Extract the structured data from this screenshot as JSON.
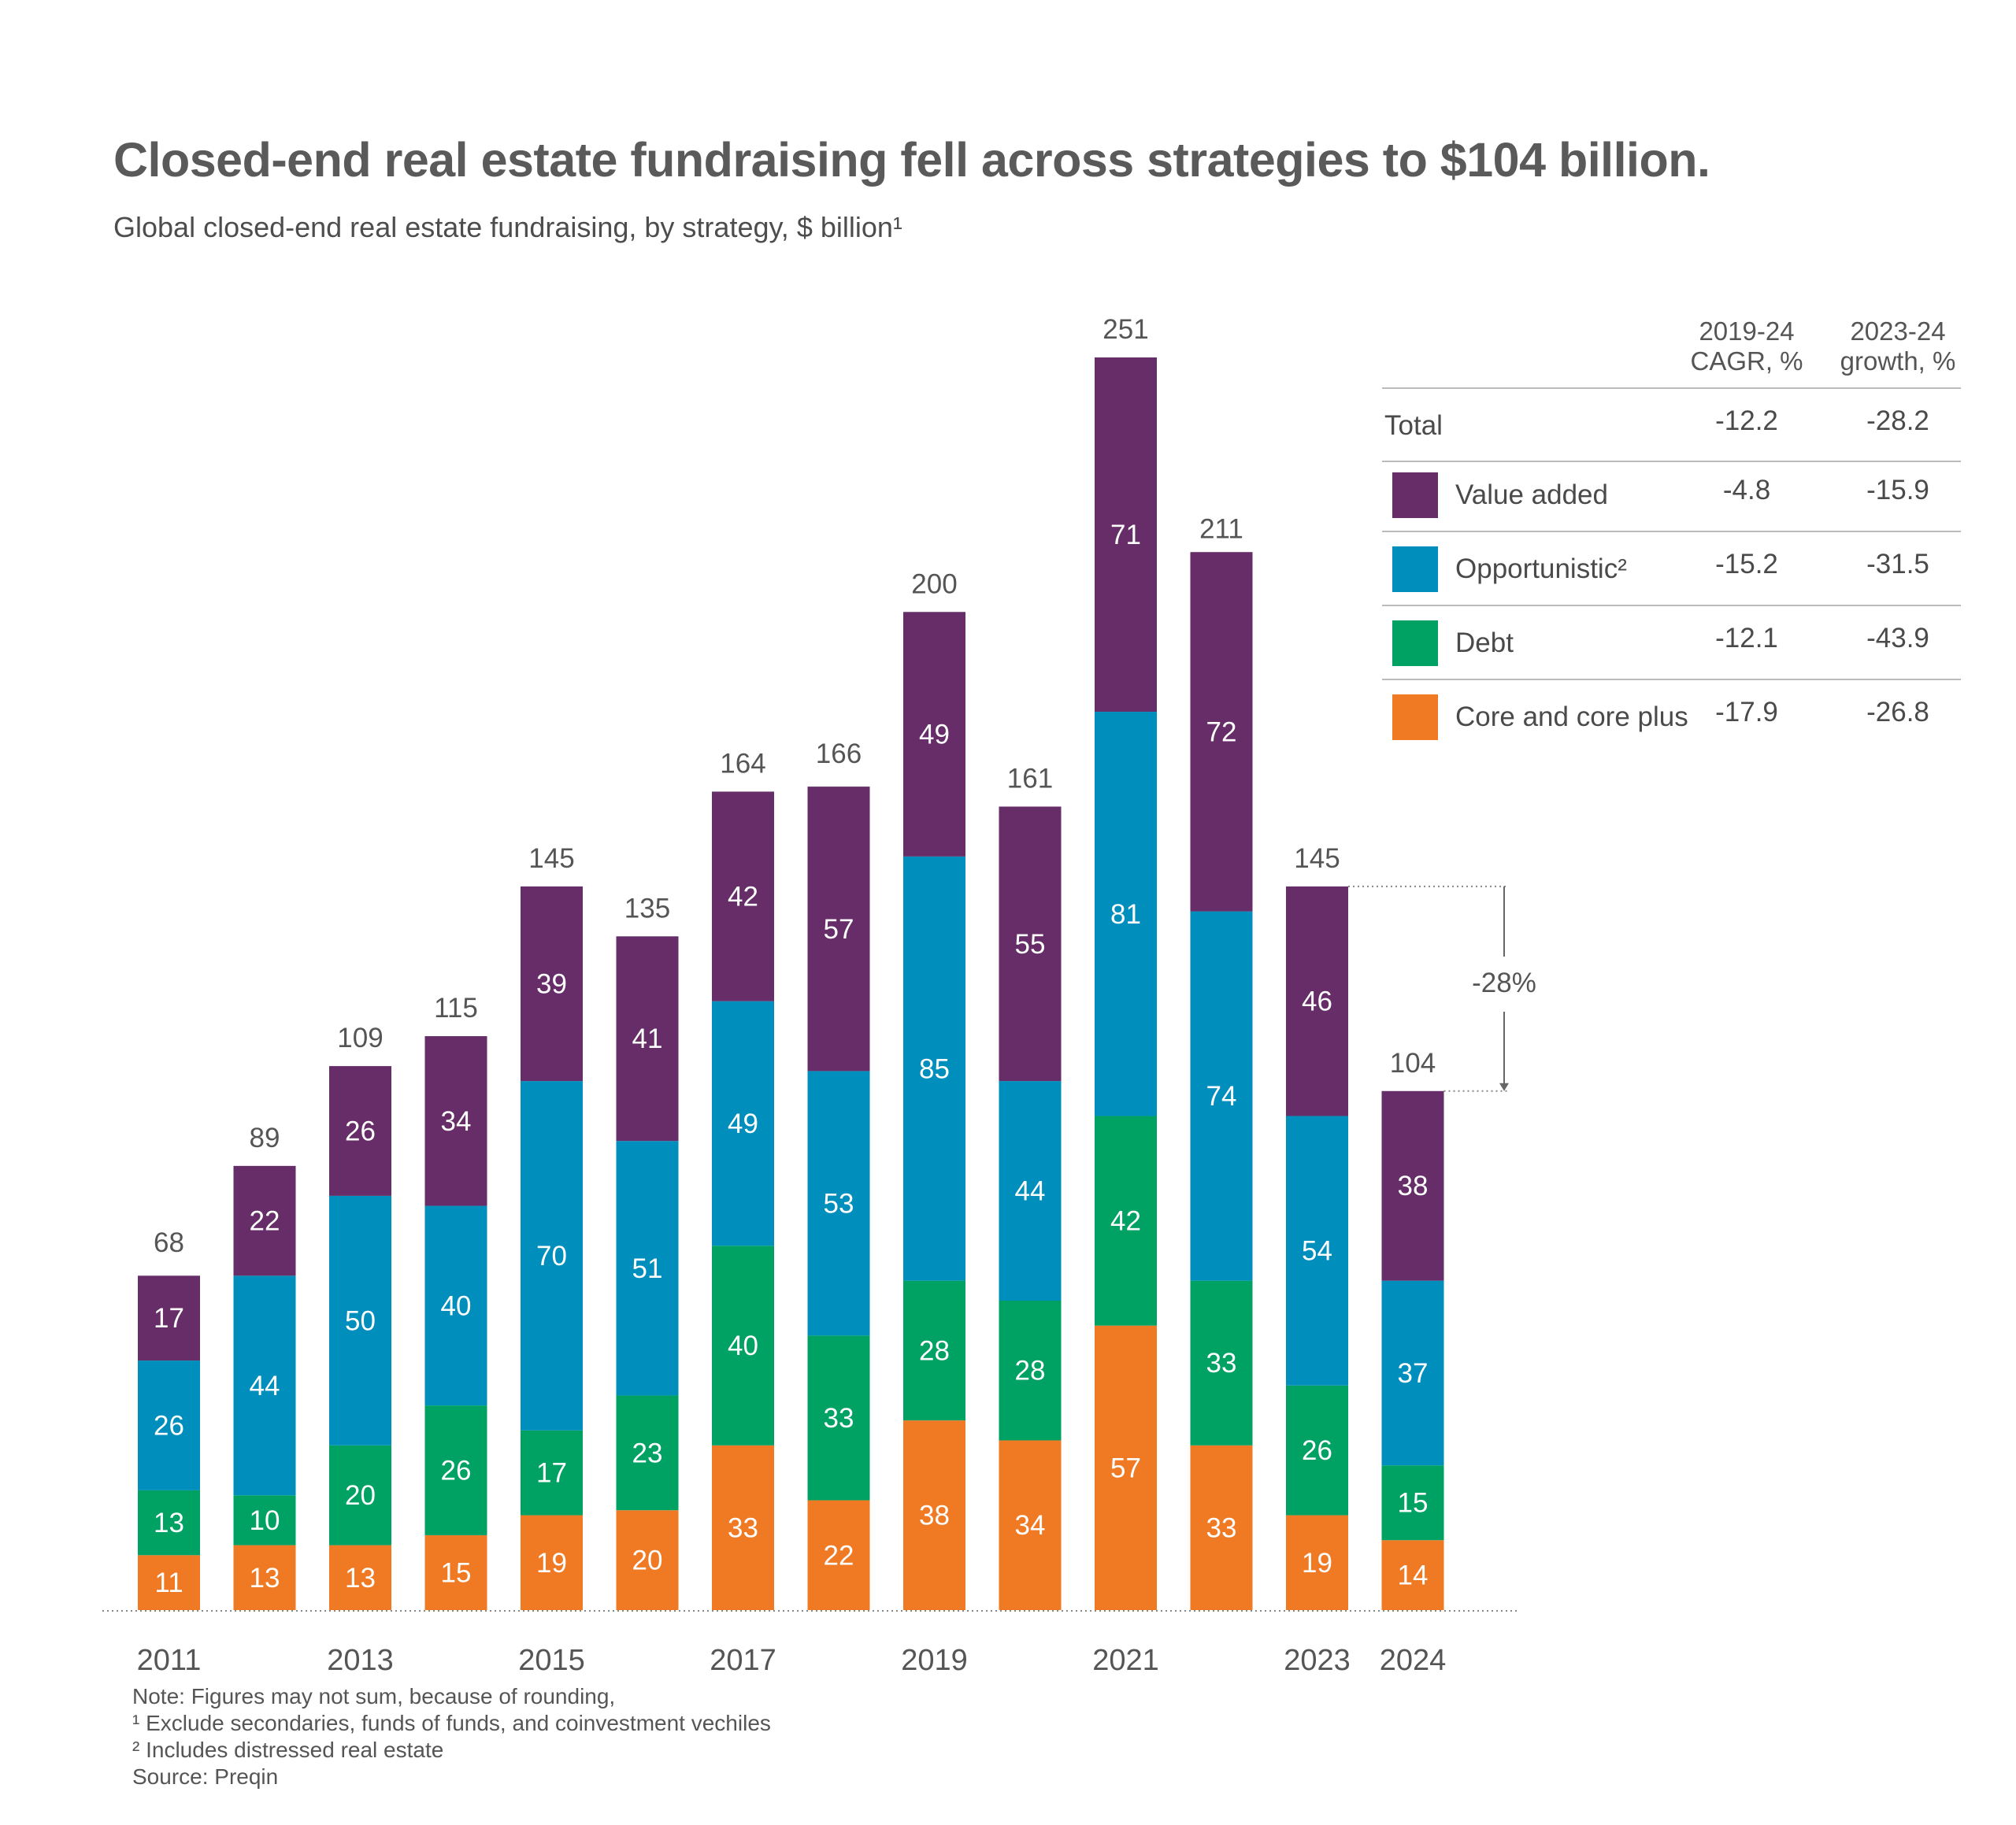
{
  "title": "Closed-end real estate fundraising fell across strategies to $104 billion.",
  "subtitle": "Global closed-end real estate fundraising, by strategy, $ billion¹",
  "notes": [
    "Note: Figures may not sum, because of rounding,",
    "¹ Exclude secondaries, funds of funds, and coinvestment vechiles",
    "² Includes distressed real estate",
    "Source: Preqin"
  ],
  "chart_data": {
    "type": "bar",
    "stacked": true,
    "unit": "$ billion",
    "categories": [
      "2011",
      "2012",
      "2013",
      "2014",
      "2015",
      "2016",
      "2017",
      "2018",
      "2019",
      "2020",
      "2021",
      "2022",
      "2023",
      "2024"
    ],
    "x_tick_labels": [
      "2011",
      "",
      "2013",
      "",
      "2015",
      "",
      "2017",
      "",
      "2019",
      "",
      "2021",
      "",
      "2023",
      "2024"
    ],
    "totals": [
      68,
      89,
      109,
      115,
      145,
      135,
      164,
      166,
      200,
      161,
      251,
      211,
      145,
      104
    ],
    "series": [
      {
        "name": "Core and core plus",
        "color": "#f07a24",
        "values": [
          11,
          13,
          13,
          15,
          19,
          20,
          33,
          22,
          38,
          34,
          57,
          33,
          19,
          14
        ]
      },
      {
        "name": "Debt",
        "color": "#00a264",
        "values": [
          13,
          10,
          20,
          26,
          17,
          23,
          40,
          33,
          28,
          28,
          42,
          33,
          26,
          15
        ]
      },
      {
        "name": "Opportunistic²",
        "color": "#008ebd",
        "values": [
          26,
          44,
          50,
          40,
          70,
          51,
          49,
          53,
          85,
          44,
          81,
          74,
          54,
          37
        ]
      },
      {
        "name": "Value added",
        "color": "#662d68",
        "values": [
          17,
          22,
          26,
          34,
          39,
          41,
          42,
          57,
          49,
          55,
          71,
          72,
          46,
          38
        ]
      }
    ],
    "ylim": [
      0,
      251
    ],
    "annotation": {
      "from": "2023",
      "to": "2024",
      "label": "-28%"
    },
    "table": {
      "headers": [
        "2019-24\nCAGR, %",
        "2023-24\ngrowth, %"
      ],
      "header_lines": [
        [
          "2019-24",
          "CAGR, %"
        ],
        [
          "2023-24",
          "growth, %"
        ]
      ],
      "rows": [
        {
          "label": "Total",
          "cagr": "-12.2",
          "growth": "-28.2"
        },
        {
          "label": "Value added",
          "cagr": "-4.8",
          "growth": "-15.9",
          "color": "#662d68"
        },
        {
          "label": "Opportunistic²",
          "cagr": "-15.2",
          "growth": "-31.5",
          "color": "#008ebd"
        },
        {
          "label": "Debt",
          "cagr": "-12.1",
          "growth": "-43.9",
          "color": "#00a264"
        },
        {
          "label": "Core and core plus",
          "cagr": "-17.9",
          "growth": "-26.8",
          "color": "#f07a24"
        }
      ]
    }
  }
}
